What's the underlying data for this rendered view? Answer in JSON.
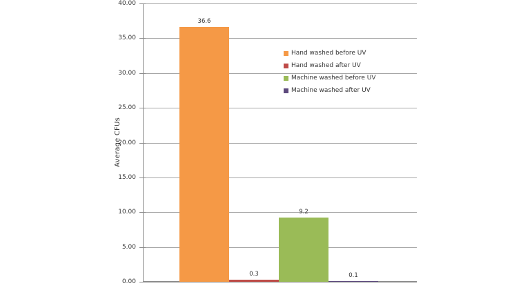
{
  "chart_data": {
    "type": "bar",
    "title": "",
    "xlabel": "",
    "ylabel": "Average CFUs",
    "ylim": [
      0,
      40
    ],
    "ytick_labels": [
      "0.00",
      "5.00",
      "10.00",
      "15.00",
      "20.00",
      "25.00",
      "30.00",
      "35.00",
      "40.00"
    ],
    "grid": true,
    "legend_position": "inside-right",
    "categories": [
      ""
    ],
    "series": [
      {
        "name": "Hand washed before UV",
        "value": 36.6,
        "data_label": "36.6",
        "color": "#f59946"
      },
      {
        "name": "Hand washed after UV",
        "value": 0.3,
        "data_label": "0.3",
        "color": "#be4b48"
      },
      {
        "name": "Machine washed before UV",
        "value": 9.2,
        "data_label": "9.2",
        "color": "#9abb57"
      },
      {
        "name": "Machine washed after UV",
        "value": 0.1,
        "data_label": "0.1",
        "color": "#5d4a7d"
      }
    ],
    "style_colors": {
      "gridline": "#a6a6a6",
      "axis": "#8c8c8c",
      "text": "#363636",
      "background": "#ffffff"
    }
  }
}
